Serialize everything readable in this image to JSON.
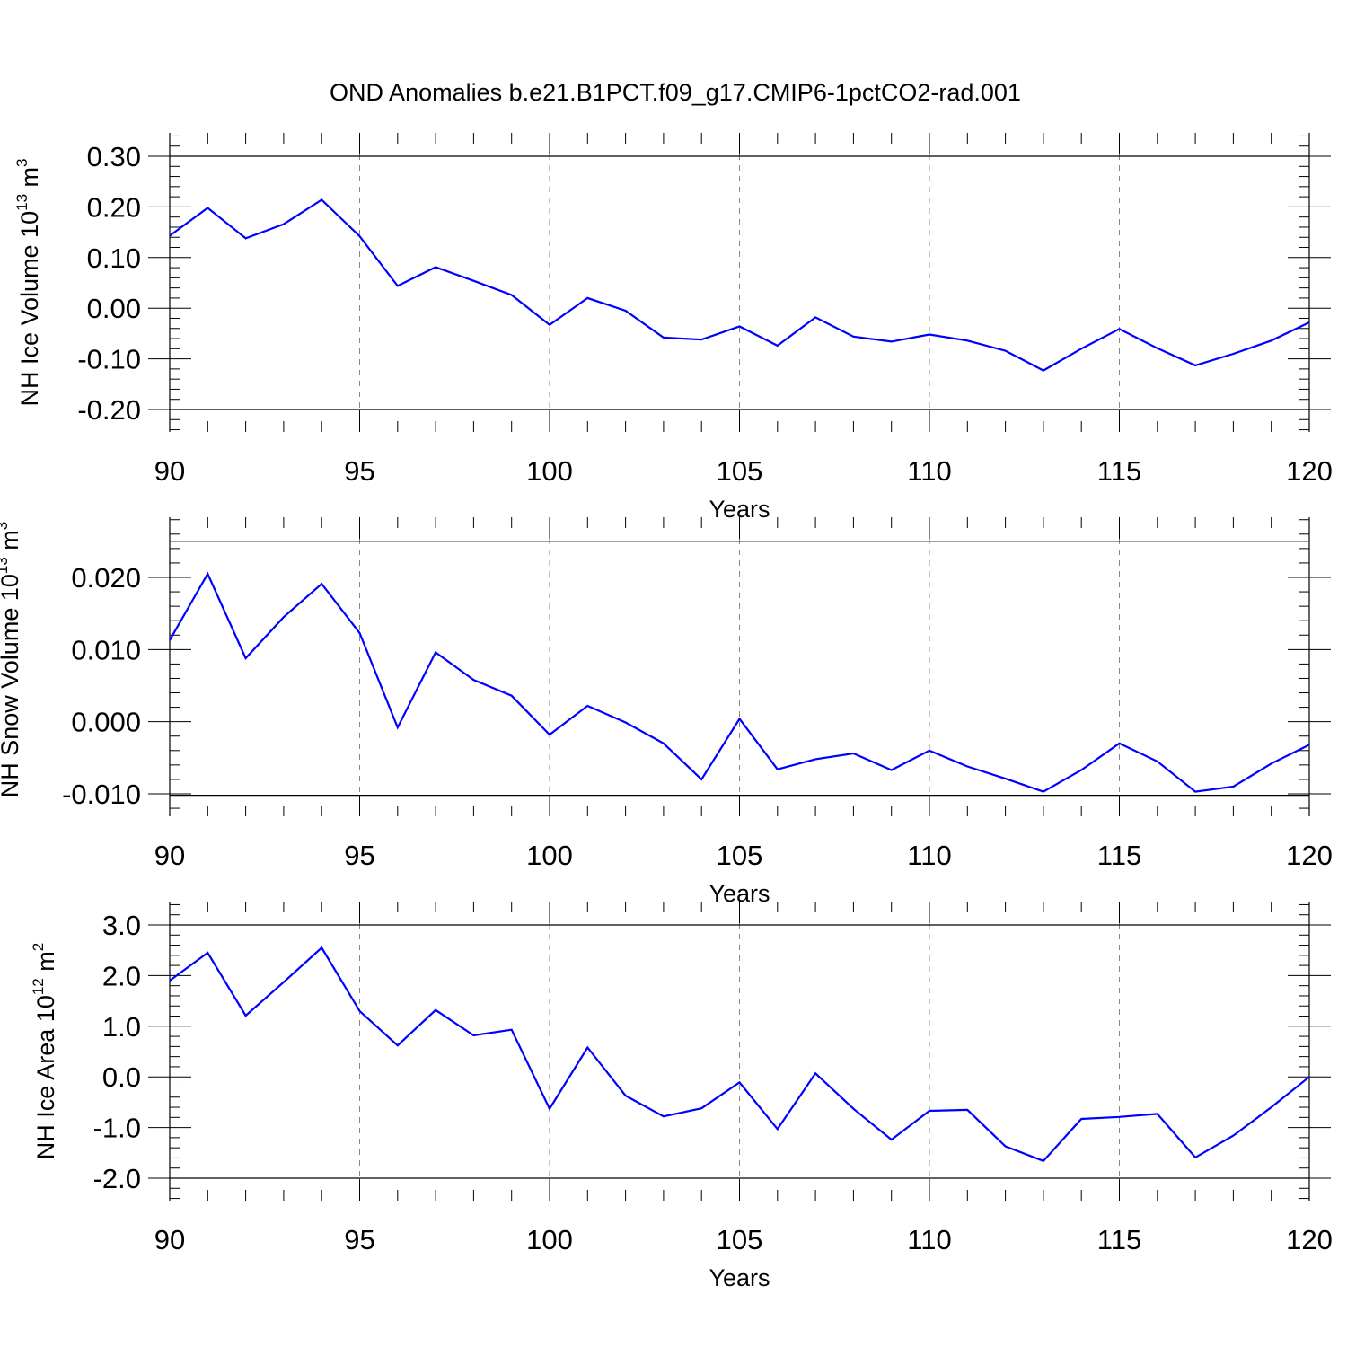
{
  "title": "OND Anomalies b.e21.B1PCT.f09_g17.CMIP6-1pctCO2-rad.001",
  "chart_data": [
    {
      "type": "line",
      "ylabel": {
        "text": "NH Ice Volume 10",
        "sup": "13",
        "unit": " m",
        "unit_sup": "3"
      },
      "xlabel": "Years",
      "xlim": [
        90,
        120
      ],
      "ylim": [
        -0.2,
        0.3
      ],
      "yticks": [
        -0.2,
        -0.1,
        0.0,
        0.1,
        0.2,
        0.3
      ],
      "ytick_labels": [
        "-0.20",
        "-0.10",
        "0.00",
        "0.10",
        "0.20",
        "0.30"
      ],
      "xticks": [
        90,
        95,
        100,
        105,
        110,
        115,
        120
      ],
      "xtick_labels": [
        "90",
        "95",
        "100",
        "105",
        "110",
        "115",
        "120"
      ],
      "grid": "vertical dashed at major x ticks",
      "line_color": "#0000ff",
      "x": [
        90,
        91,
        92,
        93,
        94,
        95,
        96,
        97,
        98,
        99,
        100,
        101,
        102,
        103,
        104,
        105,
        106,
        107,
        108,
        109,
        110,
        111,
        112,
        113,
        114,
        115,
        116,
        117,
        118,
        119,
        120
      ],
      "y": [
        0.143,
        0.198,
        0.138,
        0.166,
        0.214,
        0.142,
        0.044,
        0.081,
        0.054,
        0.026,
        -0.033,
        0.02,
        -0.005,
        -0.058,
        -0.062,
        -0.036,
        -0.074,
        -0.018,
        -0.056,
        -0.066,
        -0.052,
        -0.064,
        -0.084,
        -0.123,
        -0.08,
        -0.041,
        -0.079,
        -0.113,
        -0.09,
        -0.064,
        -0.028
      ]
    },
    {
      "type": "line",
      "ylabel": {
        "text": "NH Snow Volume 10",
        "sup": "13",
        "unit": " m",
        "unit_sup": "3"
      },
      "xlabel": "Years",
      "xlim": [
        90,
        120
      ],
      "ylim": [
        -0.0102,
        0.025
      ],
      "yticks": [
        -0.01,
        0.0,
        0.01,
        0.02
      ],
      "ytick_labels": [
        "-0.010",
        "0.000",
        "0.010",
        "0.020"
      ],
      "xticks": [
        90,
        95,
        100,
        105,
        110,
        115,
        120
      ],
      "xtick_labels": [
        "90",
        "95",
        "100",
        "105",
        "110",
        "115",
        "120"
      ],
      "grid": "vertical dashed at major x ticks",
      "line_color": "#0000ff",
      "x": [
        90,
        91,
        92,
        93,
        94,
        95,
        96,
        97,
        98,
        99,
        100,
        101,
        102,
        103,
        104,
        105,
        106,
        107,
        108,
        109,
        110,
        111,
        112,
        113,
        114,
        115,
        116,
        117,
        118,
        119,
        120
      ],
      "y": [
        0.0113,
        0.0205,
        0.0088,
        0.0145,
        0.0191,
        0.0123,
        -0.0008,
        0.0096,
        0.0058,
        0.0036,
        -0.0018,
        0.0022,
        -0.0001,
        -0.003,
        -0.008,
        0.0004,
        -0.0066,
        -0.0052,
        -0.0044,
        -0.0067,
        -0.004,
        -0.0062,
        -0.0079,
        -0.0097,
        -0.0067,
        -0.003,
        -0.0055,
        -0.0097,
        -0.009,
        -0.0058,
        -0.0032
      ]
    },
    {
      "type": "line",
      "ylabel": {
        "text": "NH Ice Area 10",
        "sup": "12",
        "unit": " m",
        "unit_sup": "2"
      },
      "xlabel": "Years",
      "xlim": [
        90,
        120
      ],
      "ylim": [
        -2.0,
        3.0
      ],
      "yticks": [
        -2.0,
        -1.0,
        0.0,
        1.0,
        2.0,
        3.0
      ],
      "ytick_labels": [
        "-2.0",
        "-1.0",
        "0.0",
        "1.0",
        "2.0",
        "3.0"
      ],
      "xticks": [
        90,
        95,
        100,
        105,
        110,
        115,
        120
      ],
      "xtick_labels": [
        "90",
        "95",
        "100",
        "105",
        "110",
        "115",
        "120"
      ],
      "grid": "vertical dashed at major x ticks",
      "line_color": "#0000ff",
      "x": [
        90,
        91,
        92,
        93,
        94,
        95,
        96,
        97,
        98,
        99,
        100,
        101,
        102,
        103,
        104,
        105,
        106,
        107,
        108,
        109,
        110,
        111,
        112,
        113,
        114,
        115,
        116,
        117,
        118,
        119,
        120
      ],
      "y": [
        1.9,
        2.45,
        1.21,
        1.87,
        2.55,
        1.3,
        0.62,
        1.32,
        0.82,
        0.93,
        -0.63,
        0.58,
        -0.37,
        -0.78,
        -0.62,
        -0.11,
        -1.03,
        0.07,
        -0.63,
        -1.24,
        -0.67,
        -0.65,
        -1.37,
        -1.66,
        -0.83,
        -0.79,
        -0.73,
        -1.59,
        -1.16,
        -0.6,
        0.0
      ]
    }
  ]
}
